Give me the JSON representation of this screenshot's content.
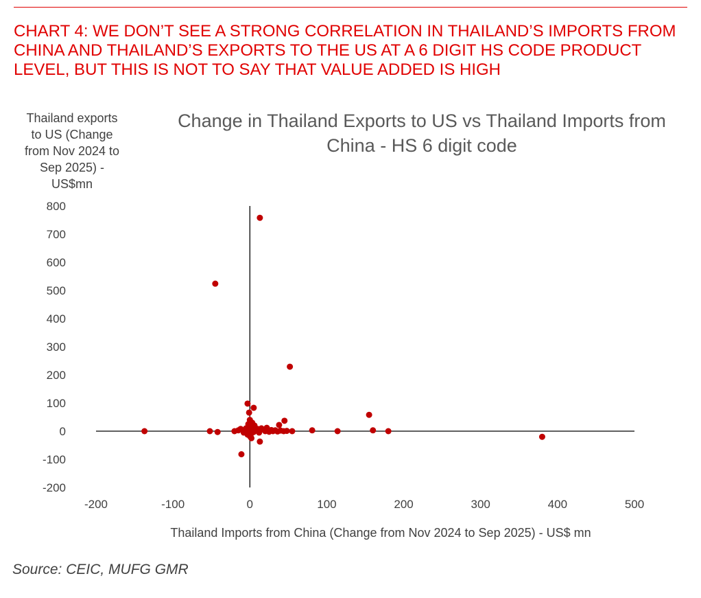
{
  "headline": "CHART 4: WE DON’T SEE A STRONG CORRELATION IN THAILAND’S IMPORTS FROM CHINA AND THAILAND’S EXPORTS TO THE US AT A 6 DIGIT HS CODE PRODUCT LEVEL, BUT THIS IS NOT TO SAY THAT VALUE ADDED IS HIGH",
  "source": "Source: CEIC, MUFG GMR",
  "chart_data": {
    "type": "scatter",
    "title": "Change in Thailand Exports to US vs Thailand Imports from China  - HS 6 digit code",
    "xlabel": "Thailand Imports from China (Change from Nov 2024 to Sep 2025) - US$ mn",
    "ylabel": "Thailand exports to US (Change from Nov 2024 to Sep 2025) - US$mn",
    "xlim": [
      -200,
      500
    ],
    "ylim": [
      -200,
      800
    ],
    "xticks": [
      -200,
      -100,
      0,
      100,
      200,
      300,
      400,
      500
    ],
    "yticks": [
      -200,
      -100,
      0,
      100,
      200,
      300,
      400,
      500,
      600,
      700,
      800
    ],
    "grid": false,
    "marker_color": "#c00000",
    "points": [
      [
        13,
        758
      ],
      [
        -45,
        524
      ],
      [
        52,
        229
      ],
      [
        155,
        58
      ],
      [
        380,
        -20
      ],
      [
        -137,
        0
      ],
      [
        -52,
        0
      ],
      [
        -42,
        -3
      ],
      [
        81,
        3
      ],
      [
        114,
        0
      ],
      [
        160,
        3
      ],
      [
        180,
        0
      ],
      [
        -3,
        98
      ],
      [
        5,
        83
      ],
      [
        -1,
        66
      ],
      [
        45,
        37
      ],
      [
        38,
        22
      ],
      [
        13,
        -37
      ],
      [
        -11,
        -82
      ],
      [
        -20,
        0
      ],
      [
        -15,
        3
      ],
      [
        -12,
        8
      ],
      [
        -8,
        -5
      ],
      [
        -5,
        10
      ],
      [
        -3,
        -12
      ],
      [
        -2,
        25
      ],
      [
        0,
        15
      ],
      [
        0,
        -18
      ],
      [
        1,
        5
      ],
      [
        2,
        -8
      ],
      [
        3,
        30
      ],
      [
        4,
        12
      ],
      [
        5,
        -3
      ],
      [
        6,
        20
      ],
      [
        8,
        2
      ],
      [
        10,
        8
      ],
      [
        12,
        -5
      ],
      [
        15,
        10
      ],
      [
        18,
        5
      ],
      [
        20,
        0
      ],
      [
        22,
        12
      ],
      [
        25,
        -2
      ],
      [
        28,
        4
      ],
      [
        30,
        0
      ],
      [
        33,
        3
      ],
      [
        36,
        -1
      ],
      [
        40,
        2
      ],
      [
        44,
        0
      ],
      [
        48,
        1
      ],
      [
        55,
        0
      ],
      [
        -6,
        0
      ],
      [
        2,
        -25
      ],
      [
        0,
        40
      ]
    ]
  }
}
